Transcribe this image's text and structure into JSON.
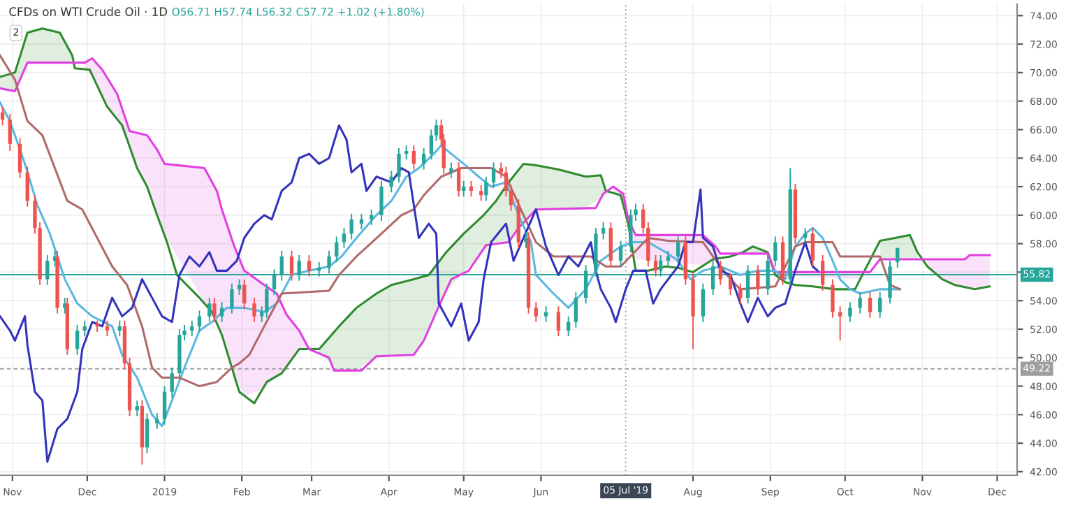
{
  "chart_data": {
    "type": "candlestick",
    "title": "CFDs on WTI Crude Oil · 1D",
    "subtitle": "O56.71 H57.74 L56.32 C57.72 +1.02 (+1.80%)",
    "annotations": [
      "2"
    ],
    "x": [
      "2018-10-28",
      "2018-10-31",
      "2018-11-04",
      "2018-11-07",
      "2018-11-10",
      "2018-11-12",
      "2018-11-15",
      "2018-11-18",
      "2018-11-19",
      "2018-11-22",
      "2018-11-23",
      "2018-11-27",
      "2018-11-30",
      "2018-12-05",
      "2018-12-09",
      "2018-12-14",
      "2018-12-16",
      "2018-12-18",
      "2018-12-21",
      "2018-12-23",
      "2018-12-25",
      "2018-12-29",
      "2019-01-01",
      "2019-01-04",
      "2019-01-07",
      "2019-01-09",
      "2019-01-12",
      "2019-01-15",
      "2019-01-19",
      "2019-01-21",
      "2019-01-24",
      "2019-01-28",
      "2019-01-31",
      "2019-02-02",
      "2019-02-06",
      "2019-02-09",
      "2019-02-11",
      "2019-02-14",
      "2019-02-17",
      "2019-02-21",
      "2019-02-24",
      "2019-02-28",
      "2019-03-04",
      "2019-03-08",
      "2019-03-11",
      "2019-03-14",
      "2019-03-17",
      "2019-03-21",
      "2019-03-25",
      "2019-03-29",
      "2019-04-02",
      "2019-04-05",
      "2019-04-08",
      "2019-04-11",
      "2019-04-15",
      "2019-04-18",
      "2019-04-20",
      "2019-04-22",
      "2019-04-23",
      "2019-04-26",
      "2019-04-29",
      "2019-05-01",
      "2019-05-04",
      "2019-05-08",
      "2019-05-10",
      "2019-05-13",
      "2019-05-16",
      "2019-05-18",
      "2019-05-20",
      "2019-05-23",
      "2019-05-26",
      "2019-05-27",
      "2019-05-30",
      "2019-06-03",
      "2019-06-08",
      "2019-06-12",
      "2019-06-15",
      "2019-06-19",
      "2019-06-23",
      "2019-06-26",
      "2019-06-29",
      "2019-07-03",
      "2019-07-07",
      "2019-07-09",
      "2019-07-12",
      "2019-07-14",
      "2019-07-17",
      "2019-07-19",
      "2019-07-22",
      "2019-07-26",
      "2019-07-29",
      "2019-08-01",
      "2019-08-05",
      "2019-08-09",
      "2019-08-12",
      "2019-08-16",
      "2019-08-20",
      "2019-08-23",
      "2019-08-27",
      "2019-08-31",
      "2019-09-03",
      "2019-09-06",
      "2019-09-09",
      "2019-09-11",
      "2019-09-15",
      "2019-09-18",
      "2019-09-22",
      "2019-09-26",
      "2019-09-29",
      "2019-10-03",
      "2019-10-07",
      "2019-10-11",
      "2019-10-15",
      "2019-10-19",
      "2019-10-22"
    ],
    "ohlc": [
      [
        67.2,
        67.6,
        66.3,
        66.7
      ],
      [
        66.7,
        67.1,
        64.5,
        65.0
      ],
      [
        65.0,
        65.4,
        62.6,
        63.0
      ],
      [
        63.0,
        63.4,
        60.6,
        61.0
      ],
      [
        61.0,
        61.4,
        58.7,
        59.1
      ],
      [
        59.1,
        59.5,
        55.1,
        55.5
      ],
      [
        55.5,
        57.2,
        55.1,
        56.8
      ],
      [
        56.8,
        57.5,
        56.4,
        57.1
      ],
      [
        57.1,
        57.5,
        53.1,
        53.5
      ],
      [
        53.5,
        54.2,
        53.1,
        53.8
      ],
      [
        53.8,
        54.2,
        50.2,
        50.6
      ],
      [
        50.6,
        52.3,
        50.2,
        51.9
      ],
      [
        51.9,
        52.6,
        51.5,
        52.2
      ],
      [
        52.4,
        52.6,
        51.8,
        52.2
      ],
      [
        52.2,
        52.6,
        51.5,
        51.9
      ],
      [
        51.9,
        52.6,
        51.5,
        52.2
      ],
      [
        52.2,
        52.6,
        49.2,
        49.6
      ],
      [
        49.6,
        50.0,
        45.9,
        46.3
      ],
      [
        46.3,
        47.0,
        45.9,
        46.6
      ],
      [
        46.6,
        47.0,
        42.5,
        43.7
      ],
      [
        43.7,
        46.1,
        43.3,
        45.7
      ],
      [
        45.4,
        46.1,
        45.0,
        45.7
      ],
      [
        45.7,
        48.0,
        45.3,
        47.6
      ],
      [
        47.6,
        49.3,
        47.2,
        48.9
      ],
      [
        48.9,
        52.0,
        48.5,
        51.6
      ],
      [
        51.6,
        52.3,
        51.2,
        51.9
      ],
      [
        51.9,
        52.6,
        51.5,
        52.2
      ],
      [
        52.2,
        53.3,
        51.8,
        52.9
      ],
      [
        52.9,
        54.2,
        52.5,
        53.8
      ],
      [
        53.8,
        54.2,
        52.5,
        52.9
      ],
      [
        52.9,
        53.9,
        52.5,
        53.5
      ],
      [
        53.5,
        55.2,
        53.1,
        54.8
      ],
      [
        54.8,
        55.5,
        54.4,
        55.1
      ],
      [
        55.1,
        55.5,
        53.4,
        53.8
      ],
      [
        53.8,
        54.2,
        52.5,
        52.9
      ],
      [
        52.9,
        53.6,
        52.5,
        53.2
      ],
      [
        53.2,
        55.2,
        52.8,
        54.8
      ],
      [
        54.8,
        56.2,
        54.4,
        55.8
      ],
      [
        55.8,
        57.5,
        55.4,
        57.1
      ],
      [
        57.1,
        57.5,
        55.4,
        55.8
      ],
      [
        55.8,
        57.2,
        55.4,
        56.8
      ],
      [
        56.8,
        57.2,
        55.7,
        56.1
      ],
      [
        56.1,
        56.7,
        55.7,
        56.3
      ],
      [
        56.3,
        57.5,
        55.9,
        57.1
      ],
      [
        57.1,
        58.5,
        56.7,
        58.1
      ],
      [
        58.1,
        59.1,
        57.7,
        58.7
      ],
      [
        58.7,
        60.1,
        58.3,
        59.7
      ],
      [
        59.4,
        60.1,
        59.0,
        59.7
      ],
      [
        59.7,
        60.4,
        59.3,
        60.0
      ],
      [
        60.0,
        62.4,
        59.6,
        62.0
      ],
      [
        62.0,
        63.1,
        61.6,
        62.7
      ],
      [
        62.7,
        64.7,
        62.3,
        64.3
      ],
      [
        64.3,
        64.9,
        63.9,
        64.5
      ],
      [
        64.5,
        64.9,
        63.2,
        63.6
      ],
      [
        63.6,
        64.7,
        63.2,
        64.3
      ],
      [
        64.3,
        66.0,
        63.9,
        65.6
      ],
      [
        65.6,
        66.7,
        65.2,
        66.3
      ],
      [
        66.3,
        66.7,
        64.9,
        65.3
      ],
      [
        65.3,
        65.7,
        62.9,
        63.3
      ],
      [
        63.0,
        63.7,
        62.6,
        63.3
      ],
      [
        63.3,
        63.7,
        61.3,
        61.7
      ],
      [
        61.7,
        62.4,
        61.3,
        62.0
      ],
      [
        62.0,
        62.4,
        61.3,
        61.7
      ],
      [
        61.7,
        62.1,
        61.0,
        61.4
      ],
      [
        61.4,
        62.7,
        61.0,
        62.3
      ],
      [
        62.3,
        63.7,
        61.9,
        63.3
      ],
      [
        63.3,
        63.7,
        62.6,
        63.0
      ],
      [
        63.0,
        63.4,
        61.3,
        61.7
      ],
      [
        61.7,
        62.1,
        60.3,
        60.7
      ],
      [
        60.7,
        61.1,
        57.7,
        58.1
      ],
      [
        58.1,
        58.8,
        57.7,
        58.4
      ],
      [
        58.4,
        58.8,
        53.1,
        53.5
      ],
      [
        53.5,
        53.9,
        52.5,
        52.9
      ],
      [
        52.9,
        53.6,
        52.5,
        53.2
      ],
      [
        53.2,
        53.6,
        51.5,
        51.9
      ],
      [
        51.9,
        52.9,
        51.5,
        52.5
      ],
      [
        52.5,
        54.6,
        52.1,
        54.2
      ],
      [
        54.2,
        56.5,
        53.8,
        56.1
      ],
      [
        56.1,
        59.1,
        55.7,
        58.7
      ],
      [
        58.7,
        59.5,
        58.3,
        59.1
      ],
      [
        59.1,
        59.5,
        56.4,
        56.8
      ],
      [
        56.8,
        58.2,
        56.4,
        57.8
      ],
      [
        57.8,
        60.4,
        57.4,
        60.0
      ],
      [
        60.0,
        60.8,
        59.6,
        60.4
      ],
      [
        60.4,
        60.8,
        58.7,
        59.1
      ],
      [
        59.1,
        59.5,
        56.4,
        56.8
      ],
      [
        56.8,
        57.2,
        55.7,
        56.1
      ],
      [
        56.1,
        57.2,
        55.7,
        56.8
      ],
      [
        56.8,
        57.5,
        56.4,
        57.1
      ],
      [
        57.1,
        58.5,
        56.7,
        58.1
      ],
      [
        58.1,
        58.5,
        55.1,
        55.5
      ],
      [
        55.5,
        55.9,
        50.6,
        52.9
      ],
      [
        52.9,
        55.2,
        52.5,
        54.8
      ],
      [
        54.8,
        56.8,
        54.4,
        56.4
      ],
      [
        56.4,
        56.8,
        55.1,
        55.5
      ],
      [
        55.5,
        55.9,
        54.4,
        54.8
      ],
      [
        54.8,
        55.2,
        53.8,
        54.2
      ],
      [
        54.2,
        56.5,
        53.8,
        56.1
      ],
      [
        56.1,
        56.5,
        54.4,
        54.8
      ],
      [
        54.8,
        57.2,
        54.4,
        56.8
      ],
      [
        56.8,
        58.5,
        56.4,
        58.1
      ],
      [
        58.1,
        58.5,
        55.1,
        55.5
      ],
      [
        55.5,
        63.3,
        55.1,
        61.8
      ],
      [
        61.8,
        62.2,
        58.0,
        58.4
      ],
      [
        58.4,
        59.1,
        58.0,
        58.7
      ],
      [
        58.7,
        59.1,
        56.4,
        56.8
      ],
      [
        56.8,
        57.2,
        54.7,
        55.1
      ],
      [
        55.1,
        55.5,
        52.8,
        53.2
      ],
      [
        53.2,
        53.6,
        51.2,
        52.9
      ],
      [
        52.9,
        53.9,
        52.5,
        53.5
      ],
      [
        53.5,
        54.6,
        53.1,
        54.2
      ],
      [
        54.2,
        54.6,
        52.8,
        53.2
      ],
      [
        53.2,
        54.6,
        52.8,
        54.2
      ],
      [
        54.2,
        56.8,
        53.8,
        56.4
      ],
      [
        56.7,
        57.7,
        56.3,
        57.7
      ]
    ],
    "colors": [
      "#ef5350",
      "#ef5350",
      "#ef5350",
      "#ef5350",
      "#ef5350",
      "#ef5350",
      "#26a69a",
      "#26a69a",
      "#ef5350",
      "#26a69a",
      "#ef5350",
      "#26a69a",
      "#26a69a",
      "#ef5350",
      "#ef5350",
      "#26a69a",
      "#ef5350",
      "#ef5350",
      "#26a69a",
      "#ef5350",
      "#26a69a",
      "#26a69a",
      "#26a69a",
      "#26a69a",
      "#26a69a",
      "#26a69a",
      "#26a69a",
      "#26a69a",
      "#26a69a",
      "#ef5350",
      "#26a69a",
      "#26a69a",
      "#26a69a",
      "#ef5350",
      "#ef5350",
      "#26a69a",
      "#26a69a",
      "#26a69a",
      "#26a69a",
      "#ef5350",
      "#26a69a",
      "#ef5350",
      "#26a69a",
      "#26a69a",
      "#26a69a",
      "#26a69a",
      "#26a69a",
      "#26a69a",
      "#26a69a",
      "#26a69a",
      "#26a69a",
      "#26a69a",
      "#26a69a",
      "#ef5350",
      "#26a69a",
      "#26a69a",
      "#26a69a",
      "#ef5350",
      "#ef5350",
      "#26a69a",
      "#ef5350",
      "#26a69a",
      "#ef5350",
      "#ef5350",
      "#26a69a",
      "#26a69a",
      "#ef5350",
      "#ef5350",
      "#ef5350",
      "#ef5350",
      "#26a69a",
      "#ef5350",
      "#ef5350",
      "#26a69a",
      "#ef5350",
      "#26a69a",
      "#26a69a",
      "#26a69a",
      "#26a69a",
      "#26a69a",
      "#ef5350",
      "#26a69a",
      "#26a69a",
      "#26a69a",
      "#ef5350",
      "#ef5350",
      "#ef5350",
      "#26a69a",
      "#26a69a",
      "#26a69a",
      "#ef5350",
      "#ef5350",
      "#26a69a",
      "#26a69a",
      "#ef5350",
      "#ef5350",
      "#ef5350",
      "#26a69a",
      "#ef5350",
      "#26a69a",
      "#26a69a",
      "#ef5350",
      "#26a69a",
      "#ef5350",
      "#26a69a",
      "#ef5350",
      "#ef5350",
      "#ef5350",
      "#ef5350",
      "#26a69a",
      "#26a69a",
      "#ef5350",
      "#26a69a",
      "#26a69a",
      "#26a69a"
    ],
    "series": [
      {
        "type": "line",
        "color": "#2e8b2e",
        "x": [
          "2018-10-27",
          "2018-11-02",
          "2018-11-07",
          "2018-11-13",
          "2018-11-20",
          "2018-11-25",
          "2018-11-26",
          "2018-12-02",
          "2018-12-09",
          "2018-12-15",
          "2018-12-21",
          "2018-12-25",
          "2018-12-29",
          "2019-01-02",
          "2019-01-06",
          "2019-01-15",
          "2019-01-20",
          "2019-01-24",
          "2019-01-28",
          "2019-01-31",
          "2019-02-06",
          "2019-02-11",
          "2019-02-17",
          "2019-02-24",
          "2019-03-04",
          "2019-03-12",
          "2019-03-19",
          "2019-03-27",
          "2019-04-02",
          "2019-04-11",
          "2019-04-17",
          "2019-04-24",
          "2019-05-01",
          "2019-05-09",
          "2019-05-14",
          "2019-05-19",
          "2019-05-25",
          "2019-05-30",
          "2019-06-08",
          "2019-06-19",
          "2019-06-25",
          "2019-06-27",
          "2019-07-03",
          "2019-07-06",
          "2019-07-09",
          "2019-07-14",
          "2019-07-21",
          "2019-07-26",
          "2019-08-01",
          "2019-08-09",
          "2019-08-16",
          "2019-08-21",
          "2019-08-25",
          "2019-08-31",
          "2019-09-03",
          "2019-09-07",
          "2019-09-11",
          "2019-09-18",
          "2019-09-27",
          "2019-10-05",
          "2019-10-07",
          "2019-10-15",
          "2019-10-21",
          "2019-10-27",
          "2019-10-30",
          "2019-11-03",
          "2019-11-09",
          "2019-11-14",
          "2019-11-22",
          "2019-11-28"
        ],
        "values": [
          69.7,
          70.0,
          72.8,
          73.1,
          72.8,
          71.2,
          70.3,
          70.2,
          67.6,
          66.3,
          63.3,
          62.0,
          60.0,
          58.1,
          55.8,
          54.2,
          53.2,
          51.6,
          49.3,
          47.6,
          46.8,
          48.3,
          48.9,
          50.6,
          50.6,
          52.2,
          53.5,
          54.5,
          55.1,
          55.5,
          55.8,
          57.4,
          58.7,
          60.0,
          61.0,
          62.3,
          63.6,
          63.5,
          63.2,
          62.7,
          62.8,
          61.7,
          61.4,
          59.4,
          56.1,
          56.1,
          56.4,
          56.3,
          56.0,
          56.9,
          57.1,
          57.4,
          57.8,
          57.4,
          55.8,
          55.3,
          55.1,
          55.0,
          54.8,
          54.8,
          55.5,
          58.2,
          58.4,
          58.6,
          57.4,
          56.4,
          55.5,
          55.1,
          54.8,
          55.0
        ],
        "upper": [
          69.7,
          70.0,
          72.8,
          73.1,
          72.8,
          71.2,
          null,
          null,
          null,
          null,
          null,
          null,
          null,
          null,
          null,
          null,
          null,
          null,
          null,
          null,
          null,
          null,
          null,
          null,
          50.6,
          52.2,
          53.5,
          54.5,
          55.1,
          55.5,
          55.8,
          57.4,
          58.7,
          60.0,
          61.0,
          62.3,
          63.6,
          63.5,
          63.2,
          62.7,
          62.8,
          61.7,
          null,
          null,
          null,
          null,
          null,
          null,
          null,
          null,
          null,
          57.4,
          57.8,
          57.4,
          null,
          null,
          null,
          null,
          null,
          null,
          null,
          58.2,
          58.4,
          58.6,
          57.4,
          null,
          null,
          null,
          null,
          null
        ],
        "lower": [
          68.9,
          68.7,
          70.7,
          70.7,
          70.7,
          70.7,
          null,
          null,
          null,
          null,
          null,
          null,
          null,
          null,
          null,
          null,
          null,
          null,
          null,
          null,
          null,
          null,
          null,
          null,
          50.3,
          49.1,
          49.1,
          50.1,
          50.1,
          50.2,
          51.9,
          54.7,
          56.0,
          57.5,
          58.0,
          58.1,
          59.4,
          60.4,
          60.4,
          60.5,
          61.2,
          61.6,
          null,
          null,
          null,
          null,
          null,
          null,
          null,
          null,
          null,
          57.3,
          57.3,
          57.3,
          null,
          null,
          null,
          null,
          null,
          null,
          null,
          56.9,
          56.9,
          56.9,
          56.9,
          null,
          null,
          null,
          null,
          null
        ]
      },
      {
        "type": "line",
        "color": "#e040e0",
        "x": [
          "2018-10-27",
          "2018-11-02",
          "2018-11-07",
          "2018-11-30",
          "2018-12-03",
          "2018-12-07",
          "2018-12-13",
          "2018-12-18",
          "2018-12-25",
          "2018-12-29",
          "2019-01-01",
          "2019-01-17",
          "2019-01-22",
          "2019-01-24",
          "2019-01-29",
          "2019-02-02",
          "2019-02-10",
          "2019-02-15",
          "2019-02-19",
          "2019-02-24",
          "2019-02-28",
          "2019-03-08",
          "2019-03-10",
          "2019-03-21",
          "2019-03-27",
          "2019-04-11",
          "2019-04-15",
          "2019-04-20",
          "2019-04-26",
          "2019-05-03",
          "2019-05-10",
          "2019-05-19",
          "2019-05-23",
          "2019-05-30",
          "2019-06-23",
          "2019-06-26",
          "2019-06-30",
          "2019-07-04",
          "2019-07-06",
          "2019-07-09",
          "2019-08-05",
          "2019-08-10",
          "2019-08-12",
          "2019-08-31",
          "2019-09-03",
          "2019-10-07",
          "2019-10-11",
          "2019-10-15",
          "2019-11-03",
          "2019-11-09",
          "2019-11-18",
          "2019-11-20",
          "2019-11-28"
        ],
        "values": [
          68.9,
          68.7,
          70.7,
          70.7,
          71.0,
          70.2,
          68.5,
          65.9,
          65.6,
          64.6,
          63.6,
          63.3,
          61.7,
          60.4,
          57.8,
          56.1,
          55.1,
          54.5,
          53.0,
          51.9,
          50.6,
          50.0,
          49.1,
          49.1,
          50.1,
          50.2,
          51.2,
          53.2,
          55.5,
          56.1,
          57.9,
          58.1,
          59.1,
          60.4,
          60.5,
          61.5,
          62.0,
          61.5,
          59.7,
          58.6,
          58.6,
          57.8,
          57.3,
          57.3,
          56.0,
          56.0,
          56.0,
          56.9,
          56.9,
          56.9,
          56.9,
          57.2,
          57.2
        ],
        "upper": [
          null,
          null,
          null,
          70.7,
          71.0,
          70.2,
          68.5,
          65.9,
          65.6,
          64.6,
          63.6,
          63.3,
          61.7,
          60.4,
          57.8,
          56.1,
          55.1,
          54.5,
          53.0,
          51.9,
          50.6,
          null,
          null,
          null,
          null,
          null,
          null,
          null,
          null,
          null,
          null,
          null,
          null,
          null,
          null,
          null,
          62.0,
          61.5,
          59.7,
          58.6,
          58.6,
          57.8,
          57.3,
          null,
          56.0,
          56.0,
          null,
          null,
          56.9,
          56.9,
          56.9,
          57.2,
          57.2
        ],
        "lower": [
          null,
          null,
          null,
          70.2,
          69.8,
          68.3,
          66.7,
          64.8,
          62.0,
          60.0,
          58.6,
          53.9,
          52.4,
          51.6,
          48.9,
          47.3,
          47.8,
          48.7,
          49.3,
          50.6,
          50.6,
          null,
          null,
          null,
          null,
          null,
          null,
          null,
          null,
          null,
          null,
          null,
          null,
          null,
          null,
          null,
          61.6,
          60.9,
          59.4,
          56.9,
          56.5,
          56.9,
          57.0,
          null,
          55.8,
          55.5,
          null,
          null,
          56.4,
          55.5,
          55.0,
          54.9,
          55.0
        ]
      },
      {
        "type": "line",
        "color": "#5bb8e0",
        "x": [
          "2018-10-27",
          "2018-10-31",
          "2018-11-06",
          "2018-11-11",
          "2018-11-16",
          "2018-11-22",
          "2018-11-27",
          "2018-12-03",
          "2018-12-11",
          "2018-12-15",
          "2018-12-21",
          "2018-12-27",
          "2018-12-31",
          "2019-01-04",
          "2019-01-09",
          "2019-01-15",
          "2019-01-20",
          "2019-01-26",
          "2019-02-02",
          "2019-02-10",
          "2019-02-15",
          "2019-02-21",
          "2019-02-28",
          "2019-03-08",
          "2019-03-13",
          "2019-03-19",
          "2019-03-27",
          "2019-04-02",
          "2019-04-08",
          "2019-04-13",
          "2019-04-19",
          "2019-04-22",
          "2019-04-26",
          "2019-05-01",
          "2019-05-07",
          "2019-05-12",
          "2019-05-18",
          "2019-05-23",
          "2019-05-28",
          "2019-05-30",
          "2019-06-06",
          "2019-06-12",
          "2019-06-19",
          "2019-06-25",
          "2019-07-03",
          "2019-07-08",
          "2019-07-14",
          "2019-07-21",
          "2019-07-26",
          "2019-07-31",
          "2019-08-05",
          "2019-08-12",
          "2019-08-20",
          "2019-08-27",
          "2019-09-03",
          "2019-09-07",
          "2019-09-11",
          "2019-09-15",
          "2019-09-18",
          "2019-09-22",
          "2019-09-26",
          "2019-09-29",
          "2019-10-03",
          "2019-10-07",
          "2019-10-15",
          "2019-10-23"
        ],
        "values": [
          67.9,
          66.6,
          63.6,
          60.7,
          58.7,
          55.5,
          53.8,
          52.9,
          52.2,
          50.2,
          48.6,
          46.0,
          45.2,
          47.0,
          49.3,
          51.9,
          52.5,
          53.5,
          53.5,
          53.2,
          53.8,
          55.8,
          56.1,
          56.4,
          57.1,
          58.4,
          60.0,
          61.0,
          62.7,
          63.3,
          64.3,
          64.9,
          64.3,
          63.6,
          62.7,
          62.0,
          62.3,
          60.0,
          58.1,
          55.8,
          54.5,
          53.5,
          54.8,
          56.8,
          57.8,
          58.1,
          58.1,
          57.4,
          56.8,
          55.5,
          56.1,
          56.4,
          55.8,
          56.1,
          56.1,
          55.5,
          57.8,
          58.7,
          59.1,
          58.4,
          56.8,
          55.5,
          54.8,
          54.5,
          54.8,
          54.8
        ]
      },
      {
        "type": "line",
        "color": "#b06a6a",
        "x": [
          "2018-10-27",
          "2018-11-02",
          "2018-11-07",
          "2018-11-13",
          "2018-11-18",
          "2018-11-23",
          "2018-11-29",
          "2018-12-05",
          "2018-12-11",
          "2018-12-17",
          "2018-12-23",
          "2018-12-27",
          "2018-12-31",
          "2019-01-07",
          "2019-01-15",
          "2019-01-22",
          "2019-01-28",
          "2019-01-31",
          "2019-02-04",
          "2019-02-10",
          "2019-02-17",
          "2019-03-08",
          "2019-03-12",
          "2019-03-19",
          "2019-03-29",
          "2019-04-06",
          "2019-04-11",
          "2019-04-15",
          "2019-04-22",
          "2019-04-30",
          "2019-05-12",
          "2019-05-18",
          "2019-05-25",
          "2019-05-30",
          "2019-06-06",
          "2019-06-21",
          "2019-06-27",
          "2019-07-03",
          "2019-07-14",
          "2019-07-22",
          "2019-08-05",
          "2019-08-09",
          "2019-08-16",
          "2019-08-20",
          "2019-09-03",
          "2019-09-11",
          "2019-09-15",
          "2019-09-26",
          "2019-09-29",
          "2019-10-15",
          "2019-10-19",
          "2019-10-23"
        ],
        "values": [
          71.2,
          69.5,
          66.6,
          65.6,
          63.3,
          61.0,
          60.4,
          58.4,
          56.4,
          55.1,
          52.2,
          49.3,
          48.6,
          48.6,
          48.0,
          48.3,
          49.3,
          49.6,
          50.2,
          52.2,
          54.5,
          54.7,
          55.8,
          57.1,
          58.7,
          60.0,
          60.4,
          61.4,
          62.7,
          63.3,
          63.3,
          62.7,
          60.0,
          58.1,
          57.1,
          57.1,
          56.4,
          56.4,
          58.4,
          58.2,
          58.1,
          57.1,
          55.5,
          54.8,
          55.0,
          57.8,
          58.1,
          58.1,
          57.1,
          57.1,
          55.1,
          54.8
        ]
      },
      {
        "type": "line",
        "color": "#3333bb",
        "x": [
          "2018-10-27",
          "2018-10-31",
          "2018-11-02",
          "2018-11-06",
          "2018-11-07",
          "2018-11-10",
          "2018-11-13",
          "2018-11-15",
          "2018-11-19",
          "2018-11-23",
          "2018-11-27",
          "2018-11-29",
          "2018-12-03",
          "2018-12-07",
          "2018-12-11",
          "2018-12-15",
          "2018-12-19",
          "2018-12-23",
          "2018-12-27",
          "2018-12-31",
          "2019-01-04",
          "2019-01-07",
          "2019-01-11",
          "2019-01-15",
          "2019-01-19",
          "2019-01-22",
          "2019-01-26",
          "2019-01-30",
          "2019-02-02",
          "2019-02-06",
          "2019-02-10",
          "2019-02-13",
          "2019-02-17",
          "2019-02-21",
          "2019-02-24",
          "2019-02-28",
          "2019-03-04",
          "2019-03-08",
          "2019-03-12",
          "2019-03-15",
          "2019-03-17",
          "2019-03-21",
          "2019-03-23",
          "2019-03-27",
          "2019-04-02",
          "2019-04-06",
          "2019-04-09",
          "2019-04-13",
          "2019-04-17",
          "2019-04-20",
          "2019-04-21",
          "2019-04-26",
          "2019-04-30",
          "2019-05-03",
          "2019-05-07",
          "2019-05-09",
          "2019-05-12",
          "2019-05-18",
          "2019-05-21",
          "2019-05-25",
          "2019-05-30",
          "2019-06-03",
          "2019-06-08",
          "2019-06-12",
          "2019-06-16",
          "2019-06-21",
          "2019-06-23",
          "2019-06-25",
          "2019-06-29",
          "2019-07-01",
          "2019-07-05",
          "2019-07-08",
          "2019-07-13",
          "2019-07-16",
          "2019-07-19",
          "2019-07-22",
          "2019-07-26",
          "2019-07-29",
          "2019-08-01",
          "2019-08-04",
          "2019-08-05",
          "2019-08-09",
          "2019-08-12",
          "2019-08-16",
          "2019-08-20",
          "2019-08-23",
          "2019-08-27",
          "2019-08-31",
          "2019-09-03",
          "2019-09-07",
          "2019-09-11",
          "2019-09-15",
          "2019-09-18",
          "2019-09-20"
        ],
        "values": [
          52.9,
          51.9,
          51.2,
          52.9,
          50.9,
          47.6,
          47.0,
          42.7,
          45.0,
          45.7,
          47.6,
          50.6,
          52.5,
          52.2,
          54.2,
          52.9,
          53.5,
          55.5,
          54.2,
          52.9,
          52.5,
          55.8,
          57.1,
          56.4,
          57.4,
          56.1,
          56.1,
          56.8,
          58.4,
          59.4,
          60.0,
          59.7,
          61.7,
          62.3,
          64.0,
          64.3,
          63.6,
          64.0,
          66.3,
          65.3,
          63.0,
          63.6,
          61.7,
          62.7,
          62.3,
          63.3,
          63.0,
          58.4,
          59.4,
          58.7,
          53.8,
          52.2,
          53.8,
          51.2,
          52.5,
          55.5,
          58.1,
          59.4,
          56.8,
          58.4,
          60.4,
          57.8,
          55.8,
          57.1,
          56.4,
          58.1,
          56.1,
          54.8,
          53.5,
          52.5,
          54.8,
          56.1,
          56.1,
          53.8,
          54.8,
          55.5,
          56.4,
          58.1,
          58.1,
          61.8,
          58.4,
          57.8,
          56.1,
          55.8,
          53.8,
          52.5,
          54.2,
          52.9,
          53.5,
          53.8,
          56.1,
          58.1,
          56.4,
          56.1
        ]
      }
    ],
    "ref_lines": [
      {
        "axis": "y",
        "value": 55.82,
        "label": "55.82",
        "color": "#26a69a",
        "line_style": "solid"
      },
      {
        "axis": "y",
        "value": 49.22,
        "label": "49.22",
        "color": "#9e9e9e",
        "line_style": "dashed"
      },
      {
        "axis": "x",
        "value": "2019-07-05",
        "label": "05 Jul '19",
        "color": "#9e9e9e",
        "line_style": "dotted"
      }
    ],
    "xlim": [
      "2018-10-27",
      "2019-12-09"
    ],
    "xticks": [
      {
        "value": "2018-11-01",
        "label": "Nov"
      },
      {
        "value": "2018-12-01",
        "label": "Dec"
      },
      {
        "value": "2019-01-01",
        "label": "2019"
      },
      {
        "value": "2019-02-01",
        "label": "Feb"
      },
      {
        "value": "2019-03-01",
        "label": "Mar"
      },
      {
        "value": "2019-04-01",
        "label": "Apr"
      },
      {
        "value": "2019-05-01",
        "label": "May"
      },
      {
        "value": "2019-06-01",
        "label": "Jun"
      },
      {
        "value": "2019-08-01",
        "label": "Aug"
      },
      {
        "value": "2019-09-01",
        "label": "Sep"
      },
      {
        "value": "2019-10-01",
        "label": "Oct"
      },
      {
        "value": "2019-11-01",
        "label": "Nov"
      },
      {
        "value": "2019-12-01",
        "label": "Dec"
      }
    ],
    "ylim": [
      41.75,
      74.8
    ],
    "yticks": [
      {
        "value": 42,
        "label": "42.00"
      },
      {
        "value": 44,
        "label": "44.00"
      },
      {
        "value": 46,
        "label": "46.00"
      },
      {
        "value": 48,
        "label": "48.00"
      },
      {
        "value": 50,
        "label": "50.00"
      },
      {
        "value": 52,
        "label": "52.00"
      },
      {
        "value": 54,
        "label": "54.00"
      },
      {
        "value": 56,
        "label": null
      },
      {
        "value": 58,
        "label": "58.00"
      },
      {
        "value": 60,
        "label": "60.00"
      },
      {
        "value": 62,
        "label": "62.00"
      },
      {
        "value": 64,
        "label": "64.00"
      },
      {
        "value": 66,
        "label": "66.00"
      },
      {
        "value": 68,
        "label": "68.00"
      },
      {
        "value": 70,
        "label": "70.00"
      },
      {
        "value": 72,
        "label": "72.00"
      },
      {
        "value": 74,
        "label": "74.00"
      }
    ],
    "grid": true
  }
}
